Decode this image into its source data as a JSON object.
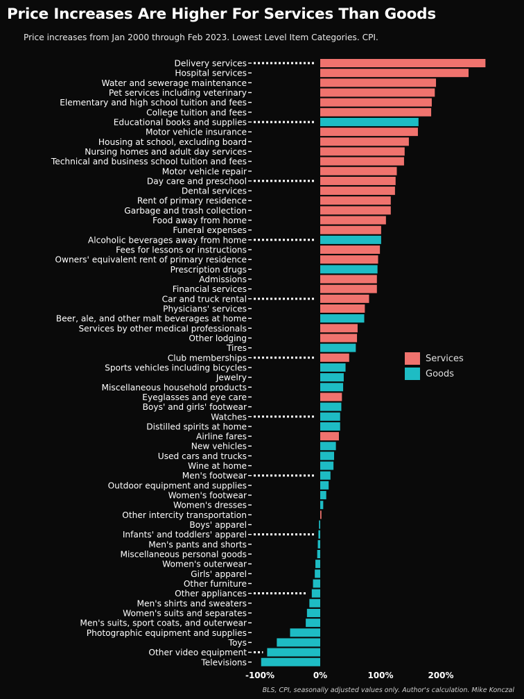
{
  "title": "Price Increases Are Higher For Services Than Goods",
  "subtitle": "Price increases from Jan 2000 through Feb 2023. Lowest Level Item Categories. CPI.",
  "source": "BLS, CPI, seasonally adjusted values only. Author's calculation. Mike Konczal",
  "colors": {
    "services": "#f0736e",
    "goods": "#1ebcc4",
    "background": "#0a0a0a",
    "text": "#ffffff",
    "dots": "#ffffff"
  },
  "legend": [
    {
      "key": "services",
      "label": "Services"
    },
    {
      "key": "goods",
      "label": "Goods"
    }
  ],
  "chart_data": {
    "type": "bar",
    "orientation": "horizontal",
    "xlabel": "",
    "ylabel": "",
    "xlim": [
      -100,
      275
    ],
    "xticks": [
      -100,
      0,
      100,
      200
    ],
    "xtick_labels": [
      "-100%",
      "0%",
      "100%",
      "200%"
    ],
    "grid": false,
    "legend_position": "right",
    "dotted_leader_every": 6,
    "categories": [
      "Delivery services",
      "Hospital services",
      "Water and sewerage maintenance",
      "Pet services including veterinary",
      "Elementary and high school tuition and fees",
      "College tuition and fees",
      "Educational books and supplies",
      "Motor vehicle insurance",
      "Housing at school, excluding board",
      "Nursing homes and adult day services",
      "Technical and business school tuition and fees",
      "Motor vehicle repair",
      "Day care and preschool",
      "Dental services",
      "Rent of primary residence",
      "Garbage and trash collection",
      "Food away from home",
      "Funeral expenses",
      "Alcoholic beverages away from home",
      "Fees for lessons or instructions",
      "Owners' equivalent rent of primary residence",
      "Prescription drugs",
      "Admissions",
      "Financial services",
      "Car and truck rental",
      "Physicians' services",
      "Beer, ale, and other malt beverages at home",
      "Services by other medical professionals",
      "Other lodging",
      "Tires",
      "Club memberships",
      "Sports vehicles including bicycles",
      "Jewelry",
      "Miscellaneous household products",
      "Eyeglasses and eye care",
      "Boys' and girls' footwear",
      "Watches",
      "Distilled spirits at home",
      "Airline fares",
      "New vehicles",
      "Used cars and trucks",
      "Wine at home",
      "Men's footwear",
      "Outdoor equipment and supplies",
      "Women's footwear",
      "Women's dresses",
      "Other intercity transportation",
      "Boys' apparel",
      "Infants' and toddlers' apparel",
      "Men's pants and shorts",
      "Miscellaneous personal goods",
      "Women's outerwear",
      "Girls' apparel",
      "Other furniture",
      "Other appliances",
      "Men's shirts and sweaters",
      "Women's suits and separates",
      "Men's suits, sport coats, and outerwear",
      "Photographic equipment and supplies",
      "Toys",
      "Other video equipment",
      "Televisions"
    ],
    "values": [
      274,
      246,
      192,
      190,
      185,
      184,
      163,
      162,
      147,
      140,
      139,
      127,
      125,
      124,
      117,
      117,
      109,
      101,
      101,
      99,
      96,
      95,
      94,
      94,
      81,
      74,
      73,
      62,
      61,
      59,
      48,
      42,
      39,
      38,
      36,
      35,
      33,
      33,
      31,
      26,
      23,
      22,
      17,
      14,
      10,
      5,
      2,
      -2,
      -3,
      -4,
      -5,
      -8,
      -9,
      -12,
      -14,
      -18,
      -22,
      -24,
      -50,
      -72,
      -88,
      -98
    ],
    "types": [
      "services",
      "services",
      "services",
      "services",
      "services",
      "services",
      "goods",
      "services",
      "services",
      "services",
      "services",
      "services",
      "services",
      "services",
      "services",
      "services",
      "services",
      "services",
      "goods",
      "services",
      "services",
      "goods",
      "services",
      "services",
      "services",
      "services",
      "goods",
      "services",
      "services",
      "goods",
      "services",
      "goods",
      "goods",
      "goods",
      "services",
      "goods",
      "goods",
      "goods",
      "services",
      "goods",
      "goods",
      "goods",
      "goods",
      "goods",
      "goods",
      "goods",
      "services",
      "goods",
      "goods",
      "goods",
      "goods",
      "goods",
      "goods",
      "goods",
      "goods",
      "goods",
      "goods",
      "goods",
      "goods",
      "goods",
      "goods",
      "goods"
    ]
  }
}
